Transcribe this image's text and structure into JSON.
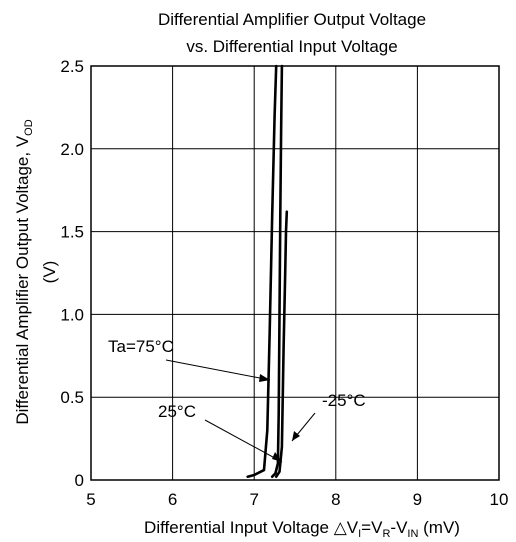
{
  "chart_data": {
    "type": "line",
    "title": "Differential Amplifier Output Voltage",
    "subtitle": "vs. Differential Input Voltage",
    "xlabel": {
      "prefix": "Differential Input Voltage △V",
      "sub1": "I",
      "mid1": "=V",
      "sub2": "R",
      "mid2": "-V",
      "sub3": "IN",
      "suffix": " (mV)"
    },
    "ylabel": {
      "text": "Differential Amplifier Output Voltage, V",
      "sub": "OD",
      "unit": "(V)"
    },
    "xlim": [
      5,
      10
    ],
    "ylim": [
      0,
      2.5
    ],
    "x_ticks": [
      "5",
      "6",
      "7",
      "8",
      "9",
      "10"
    ],
    "y_ticks": [
      "0",
      "0.5",
      "1.0",
      "1.5",
      "2.0",
      "2.5"
    ],
    "grid": true,
    "series": [
      {
        "name": "Ta=75°C",
        "x": [
          6.92,
          7.0,
          7.12,
          7.16,
          7.19,
          7.22,
          7.25,
          7.27
        ],
        "y": [
          0.02,
          0.03,
          0.06,
          0.3,
          0.9,
          1.6,
          2.2,
          2.5
        ]
      },
      {
        "name": "25°C",
        "x": [
          7.22,
          7.26,
          7.29,
          7.3,
          7.31,
          7.32,
          7.33,
          7.34
        ],
        "y": [
          0.02,
          0.04,
          0.1,
          0.4,
          1.0,
          1.6,
          2.1,
          2.5
        ]
      },
      {
        "name": "-25°C",
        "x": [
          7.27,
          7.31,
          7.34,
          7.36,
          7.38,
          7.39,
          7.4
        ],
        "y": [
          0.02,
          0.05,
          0.2,
          0.8,
          1.25,
          1.5,
          1.62
        ]
      }
    ],
    "annotations": [
      "Ta=75°C",
      "25°C",
      "-25°C"
    ]
  }
}
